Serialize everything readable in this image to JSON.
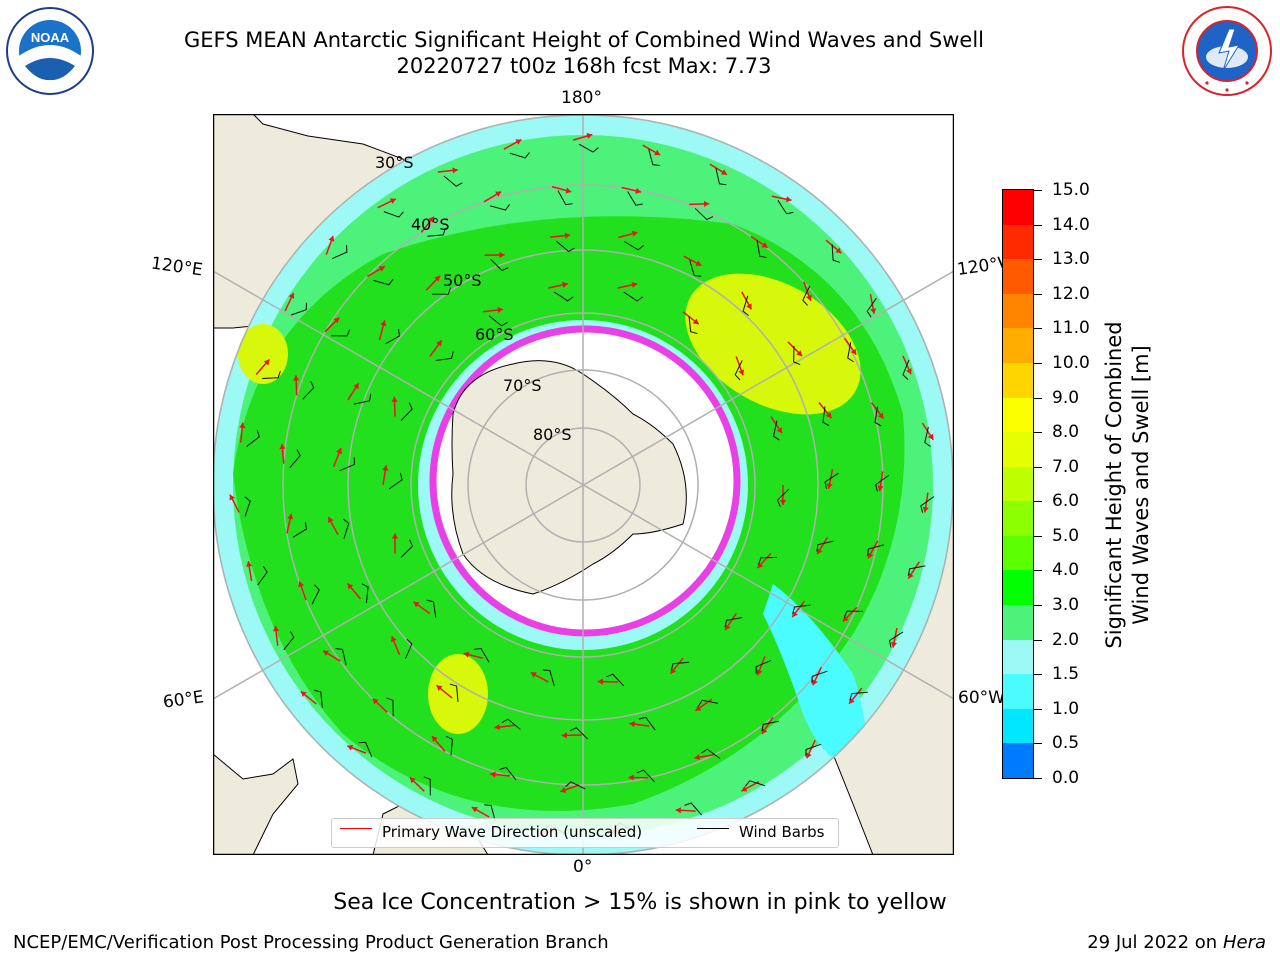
{
  "title": {
    "line1": "GEFS MEAN Antarctic Significant Height of Combined Wind Waves and Swell",
    "line2": "20220727 t00z 168h fcst   Max: 7.73"
  },
  "logos": {
    "left": {
      "icon": "noaa-logo",
      "text": "NOAA",
      "ring_text": "NATIONAL OCEANIC AND ATMOSPHERIC ADMINISTRATION · U.S. DEPARTMENT OF COMMERCE"
    },
    "right": {
      "icon": "nws-logo",
      "ring_text": "NATIONAL WEATHER SERVICE"
    }
  },
  "map": {
    "projection": "south polar stereographic",
    "lon_labels": {
      "top": "180°",
      "bottom": "0°",
      "upper_left": "120°E",
      "upper_right": "120°W",
      "lower_left": "60°E",
      "lower_right": "60°W"
    },
    "lat_labels": [
      "30°S",
      "40°S",
      "50°S",
      "60°S",
      "70°S",
      "80°S"
    ],
    "colors": {
      "land": "#efebdc",
      "ocean_light": "#9cf9f5",
      "ocean_green": "#4df27b",
      "ocean_bright": "#22e01d",
      "ocean_yellow": "#d7f70b",
      "ice_edge": "#e83fe6",
      "arrows": "#e8151b",
      "barbs": "#111111",
      "grid": "#b0b0b0"
    }
  },
  "legend": {
    "items": [
      {
        "label": "Primary Wave Direction (unscaled)",
        "color": "#ff0000"
      },
      {
        "label": "Wind Barbs",
        "color": "#000000"
      }
    ]
  },
  "colorbar": {
    "label_line1": "Significant Height of Combined",
    "label_line2": "Wind Waves and Swell [m]",
    "ticks": [
      "15.0",
      "14.0",
      "13.0",
      "12.0",
      "11.0",
      "10.0",
      "9.0",
      "8.0",
      "7.0",
      "6.0",
      "5.0",
      "4.0",
      "3.0",
      "2.0",
      "1.5",
      "1.0",
      "0.5",
      "0.0"
    ],
    "colors_top_to_bottom": [
      "#ff0000",
      "#ff2a00",
      "#ff5a00",
      "#ff8400",
      "#ffae00",
      "#ffd500",
      "#fbff00",
      "#e6ff00",
      "#bdff00",
      "#8cff00",
      "#5cff00",
      "#00ff00",
      "#4df27b",
      "#9cf9f5",
      "#4afcff",
      "#00e7ff",
      "#007bff",
      "#0000ff"
    ]
  },
  "notes": {
    "sea_ice": "Sea Ice Concentration > 15% is shown in pink to yellow"
  },
  "footer": {
    "left": "NCEP/EMC/Verification Post Processing Product Generation Branch",
    "right_date": "29 Jul 2022 on ",
    "right_host": "Hera"
  }
}
